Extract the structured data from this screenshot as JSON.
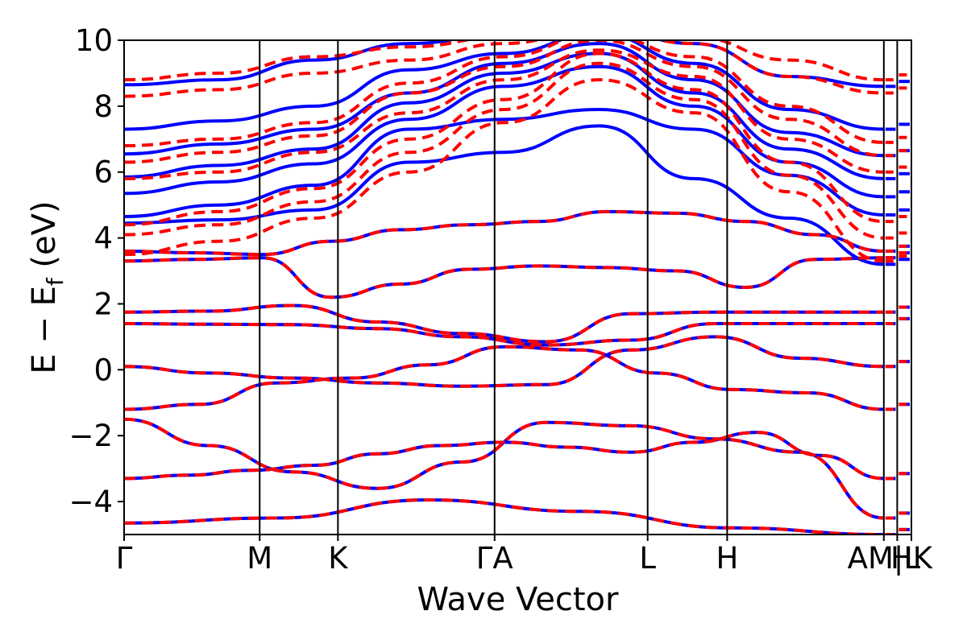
{
  "chart_data": {
    "type": "line",
    "title": "",
    "xlabel": "Wave Vector",
    "ylabel": "E − E",
    "ylabel_sub": "f",
    "ylabel_unit": " (eV)",
    "ylim": [
      -5,
      10
    ],
    "yticks": [
      -4,
      -2,
      0,
      2,
      4,
      6,
      8,
      10
    ],
    "ytick_labels": [
      "−4",
      "−2",
      "0",
      "2",
      "4",
      "6",
      "8",
      "10"
    ],
    "xlim": [
      0,
      1
    ],
    "kpoints": [
      {
        "label": "Γ",
        "x": 0.0
      },
      {
        "label": "M",
        "x": 0.1722
      },
      {
        "label": "K",
        "x": 0.2716
      },
      {
        "label": "ΓA",
        "x": 0.4706
      },
      {
        "label": "L",
        "x": 0.665
      },
      {
        "label": "H",
        "x": 0.766
      },
      {
        "label": "AM|L",
        "x": 0.965
      },
      {
        "label": "",
        "x": 0.982
      },
      {
        "label": "HK",
        "x": 1.0
      }
    ],
    "grid": false,
    "series": [
      {
        "style": "solid",
        "color": "#0000ff",
        "bands": [
          [
            -4.65,
            -4.5,
            -3.95,
            -4.3,
            -4.8,
            -5.0
          ],
          [
            -3.3,
            -3.2,
            -3.05,
            -2.9,
            -2.55,
            -2.3,
            -2.2,
            -2.35,
            -2.5,
            -2.2,
            -1.9,
            -2.6,
            -3.3
          ],
          [
            -1.5,
            -2.3,
            -3.1,
            -3.6,
            -2.8,
            -1.6,
            -1.7,
            -2.1,
            -2.5,
            -4.5
          ],
          [
            -1.2,
            -1.05,
            -0.4,
            -0.25,
            0.15,
            0.7,
            0.6,
            -0.1,
            -0.6,
            -0.7,
            -1.2
          ],
          [
            0.1,
            -0.1,
            -0.25,
            -0.4,
            -0.5,
            -0.45,
            0.6,
            1.0,
            0.35,
            0.1
          ],
          [
            1.4,
            1.38,
            1.37,
            1.25,
            1.0,
            0.75,
            0.9,
            1.4,
            1.4,
            1.4
          ],
          [
            1.75,
            1.78,
            1.95,
            1.45,
            1.1,
            0.85,
            1.7,
            1.75,
            1.75,
            1.75
          ],
          [
            3.3,
            3.35,
            3.4,
            2.2,
            2.6,
            3.05,
            3.15,
            3.1,
            3.0,
            2.5,
            3.35,
            3.4
          ],
          [
            3.6,
            3.55,
            3.5,
            3.9,
            4.25,
            4.4,
            4.5,
            4.8,
            4.75,
            4.5,
            4.1,
            3.6
          ],
          [
            4.45,
            4.55,
            4.85,
            6.3,
            6.6,
            7.4,
            5.8,
            4.6,
            3.2
          ],
          [
            4.65,
            5.0,
            5.6,
            7.3,
            7.6,
            7.9,
            7.3,
            5.9,
            4.7
          ],
          [
            5.35,
            5.7,
            6.25,
            7.6,
            8.6,
            9.2,
            8.0,
            6.3,
            5.25
          ],
          [
            5.85,
            6.2,
            6.7,
            8.1,
            9.0,
            9.6,
            8.4,
            6.7,
            5.8
          ],
          [
            6.55,
            6.85,
            7.3,
            8.4,
            9.3,
            9.9,
            8.8,
            7.2,
            6.5
          ],
          [
            7.3,
            7.55,
            8.0,
            9.1,
            9.6,
            10.2,
            9.3,
            7.9,
            7.3
          ],
          [
            8.65,
            8.8,
            9.4,
            9.9,
            10.2,
            10.4,
            9.9,
            8.9,
            8.6
          ]
        ]
      },
      {
        "style": "dashed",
        "color": "#ff0000",
        "bands": [
          [
            -4.65,
            -4.5,
            -3.95,
            -4.3,
            -4.8,
            -5.0
          ],
          [
            -3.3,
            -3.2,
            -3.05,
            -2.9,
            -2.55,
            -2.3,
            -2.2,
            -2.35,
            -2.5,
            -2.2,
            -1.9,
            -2.6,
            -3.3
          ],
          [
            -1.5,
            -2.3,
            -3.1,
            -3.6,
            -2.8,
            -1.6,
            -1.7,
            -2.1,
            -2.5,
            -4.5
          ],
          [
            -1.2,
            -1.05,
            -0.4,
            -0.25,
            0.15,
            0.7,
            0.6,
            -0.1,
            -0.6,
            -0.7,
            -1.2
          ],
          [
            0.1,
            -0.1,
            -0.25,
            -0.4,
            -0.5,
            -0.45,
            0.6,
            1.0,
            0.35,
            0.1
          ],
          [
            1.4,
            1.38,
            1.37,
            1.25,
            1.0,
            0.75,
            0.9,
            1.4,
            1.4,
            1.4
          ],
          [
            1.75,
            1.78,
            1.95,
            1.45,
            1.1,
            0.85,
            1.7,
            1.75,
            1.75,
            1.75
          ],
          [
            3.3,
            3.35,
            3.4,
            2.2,
            2.6,
            3.05,
            3.15,
            3.1,
            3.0,
            2.5,
            3.35,
            3.4
          ],
          [
            3.6,
            3.55,
            3.5,
            3.9,
            4.25,
            4.4,
            4.5,
            4.8,
            4.75,
            4.5,
            4.1,
            3.6
          ],
          [
            3.5,
            3.9,
            4.6,
            6.0,
            7.5,
            8.8,
            7.8,
            5.4,
            3.3
          ],
          [
            4.1,
            4.4,
            5.1,
            6.6,
            7.9,
            9.3,
            8.2,
            5.9,
            4.0
          ],
          [
            4.4,
            4.8,
            5.5,
            7.0,
            8.2,
            9.6,
            8.5,
            6.3,
            4.5
          ],
          [
            5.8,
            6.0,
            6.6,
            7.8,
            8.8,
            9.7,
            8.9,
            7.0,
            6.0
          ],
          [
            6.3,
            6.6,
            7.1,
            8.4,
            9.2,
            10.0,
            9.2,
            7.6,
            6.5
          ],
          [
            6.8,
            7.0,
            7.5,
            8.7,
            9.5,
            10.2,
            9.5,
            8.0,
            6.9
          ],
          [
            8.3,
            8.5,
            9.0,
            9.4,
            9.9,
            10.4,
            9.9,
            8.9,
            8.4
          ],
          [
            8.8,
            9.0,
            9.5,
            9.8,
            10.1,
            10.5,
            10.1,
            9.4,
            8.8
          ]
        ]
      }
    ]
  }
}
